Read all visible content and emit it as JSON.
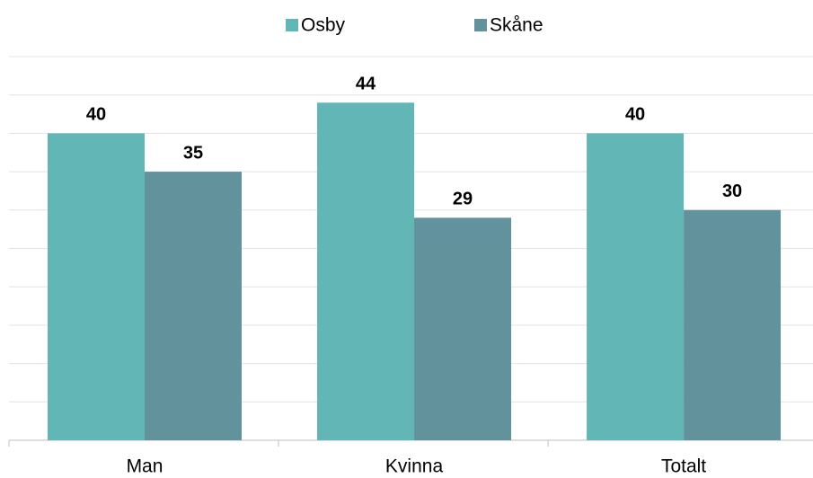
{
  "chart_data": {
    "type": "bar",
    "categories": [
      "Man",
      "Kvinna",
      "Totalt"
    ],
    "series": [
      {
        "name": "Osby",
        "color": "#62b6b5",
        "values": [
          40,
          44,
          40
        ]
      },
      {
        "name": "Skåne",
        "color": "#62939c",
        "values": [
          35,
          29,
          30
        ]
      }
    ],
    "ylim": [
      0,
      50
    ],
    "yticks": [
      0,
      5,
      10,
      15,
      20,
      25,
      30,
      35,
      40,
      45,
      50
    ],
    "grid": true,
    "legend": "top"
  }
}
